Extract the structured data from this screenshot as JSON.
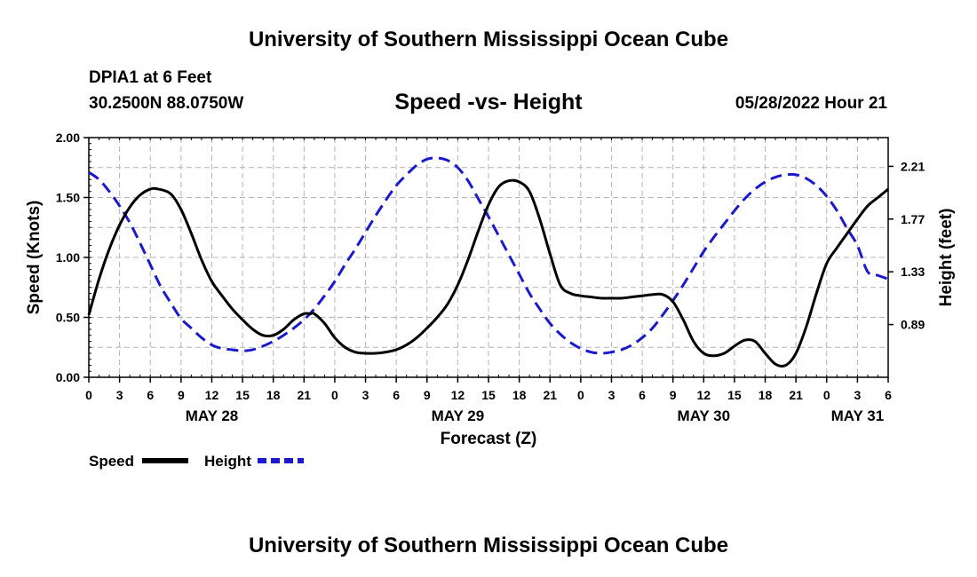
{
  "page_title": "University of Southern Mississippi Ocean Cube",
  "footer_title": "University of Southern Mississippi Ocean Cube",
  "station": "DPIA1 at 6 Feet",
  "coords": "30.2500N  88.0750W",
  "datetime": "05/28/2022 Hour 21",
  "colors": {
    "speed": "#000000",
    "height": "#1a1acc",
    "grid": "#b4b4b4"
  },
  "chart_data": {
    "type": "line",
    "title": "Speed -vs- Height",
    "xlabel": "Forecast (Z)",
    "ylabel": "Speed (Knots)",
    "y2label": "Height (feet)",
    "x_unit": "hours from May 28 00Z",
    "xlim": [
      0,
      78
    ],
    "ylim": [
      0,
      2
    ],
    "y2lim": [
      0.45,
      2.45
    ],
    "x_ticks": [
      0,
      3,
      6,
      9,
      12,
      15,
      18,
      21,
      24,
      27,
      30,
      33,
      36,
      39,
      42,
      45,
      48,
      51,
      54,
      57,
      60,
      63,
      66,
      69,
      72,
      75,
      78
    ],
    "x_tick_labels": [
      "0",
      "3",
      "6",
      "9",
      "12",
      "15",
      "18",
      "21",
      "0",
      "3",
      "6",
      "9",
      "12",
      "15",
      "18",
      "21",
      "0",
      "3",
      "6",
      "9",
      "12",
      "15",
      "18",
      "21",
      "0",
      "3",
      "6"
    ],
    "y_ticks": [
      0,
      0.5,
      1,
      1.5,
      2
    ],
    "y_tick_labels": [
      "0.00",
      "0.50",
      "1.00",
      "1.50",
      "2.00"
    ],
    "y2_ticks": [
      0.89,
      1.33,
      1.77,
      2.21
    ],
    "y2_tick_labels": [
      "0.89",
      "1.33",
      "1.77",
      "2.21"
    ],
    "day_labels": [
      {
        "x": 12,
        "label": "MAY 28"
      },
      {
        "x": 36,
        "label": "MAY 29"
      },
      {
        "x": 60,
        "label": "MAY 30"
      },
      {
        "x": 75,
        "label": "MAY 31"
      }
    ],
    "grid": true,
    "legend_position": "bottom-left",
    "series": [
      {
        "name": "Speed",
        "axis": "left",
        "style": "solid",
        "x": [
          0,
          1,
          2,
          3,
          4,
          5,
          6,
          6.8,
          8,
          9,
          10,
          11,
          12,
          13,
          14,
          15,
          16,
          17,
          18,
          19,
          20,
          21,
          21.6,
          22,
          23,
          24,
          25,
          26,
          27,
          28,
          29,
          30,
          31,
          32,
          33,
          34,
          35,
          36,
          37,
          38,
          39,
          40,
          41,
          42,
          43,
          44,
          45,
          46,
          47,
          48,
          49,
          50,
          51,
          52,
          53,
          54,
          55,
          56,
          57,
          58,
          59,
          60,
          61,
          62,
          63,
          64,
          65,
          66,
          67,
          68,
          69,
          70,
          71,
          72,
          73,
          74,
          75,
          76,
          77,
          78
        ],
        "y": [
          0.52,
          0.82,
          1.07,
          1.27,
          1.42,
          1.52,
          1.57,
          1.57,
          1.53,
          1.4,
          1.2,
          0.98,
          0.8,
          0.68,
          0.57,
          0.48,
          0.4,
          0.35,
          0.35,
          0.4,
          0.48,
          0.53,
          0.53,
          0.53,
          0.45,
          0.33,
          0.25,
          0.21,
          0.2,
          0.2,
          0.21,
          0.23,
          0.27,
          0.33,
          0.41,
          0.5,
          0.61,
          0.77,
          0.98,
          1.22,
          1.44,
          1.59,
          1.64,
          1.63,
          1.55,
          1.32,
          1.03,
          0.77,
          0.7,
          0.68,
          0.67,
          0.66,
          0.66,
          0.66,
          0.67,
          0.68,
          0.69,
          0.69,
          0.63,
          0.48,
          0.3,
          0.2,
          0.18,
          0.2,
          0.26,
          0.31,
          0.3,
          0.2,
          0.11,
          0.1,
          0.2,
          0.42,
          0.7,
          0.95,
          1.08,
          1.2,
          1.32,
          1.43,
          1.5,
          1.57
        ]
      },
      {
        "name": "Height",
        "axis": "right",
        "style": "dashed",
        "x": [
          0,
          1,
          2,
          3,
          4,
          5,
          6,
          7,
          8,
          9,
          10,
          11,
          12,
          13,
          14,
          15,
          16,
          17,
          18,
          19,
          20,
          21,
          22,
          23,
          24,
          25,
          26,
          27,
          28,
          29,
          30,
          31,
          32,
          33,
          34,
          35,
          36,
          37,
          38,
          39,
          40,
          41,
          42,
          43,
          44,
          45,
          46,
          47,
          48,
          49,
          50,
          51,
          52,
          53,
          54,
          55,
          56,
          57,
          58,
          59,
          60,
          61,
          62,
          63,
          64,
          65,
          66,
          67,
          68,
          69,
          70,
          71,
          72,
          73,
          74,
          75,
          76,
          77,
          78
        ],
        "y": [
          2.16,
          2.1,
          2.0,
          1.88,
          1.74,
          1.57,
          1.39,
          1.21,
          1.07,
          0.94,
          0.86,
          0.78,
          0.72,
          0.69,
          0.68,
          0.67,
          0.68,
          0.71,
          0.75,
          0.8,
          0.86,
          0.93,
          1.02,
          1.13,
          1.25,
          1.39,
          1.52,
          1.66,
          1.8,
          1.93,
          2.05,
          2.14,
          2.22,
          2.27,
          2.28,
          2.26,
          2.2,
          2.09,
          1.94,
          1.79,
          1.63,
          1.47,
          1.31,
          1.15,
          1.02,
          0.9,
          0.81,
          0.74,
          0.69,
          0.66,
          0.65,
          0.66,
          0.68,
          0.72,
          0.78,
          0.86,
          0.97,
          1.09,
          1.22,
          1.36,
          1.5,
          1.62,
          1.73,
          1.84,
          1.94,
          2.02,
          2.08,
          2.12,
          2.14,
          2.14,
          2.11,
          2.05,
          1.96,
          1.84,
          1.69,
          1.55,
          1.33,
          1.3,
          1.27
        ]
      }
    ]
  }
}
